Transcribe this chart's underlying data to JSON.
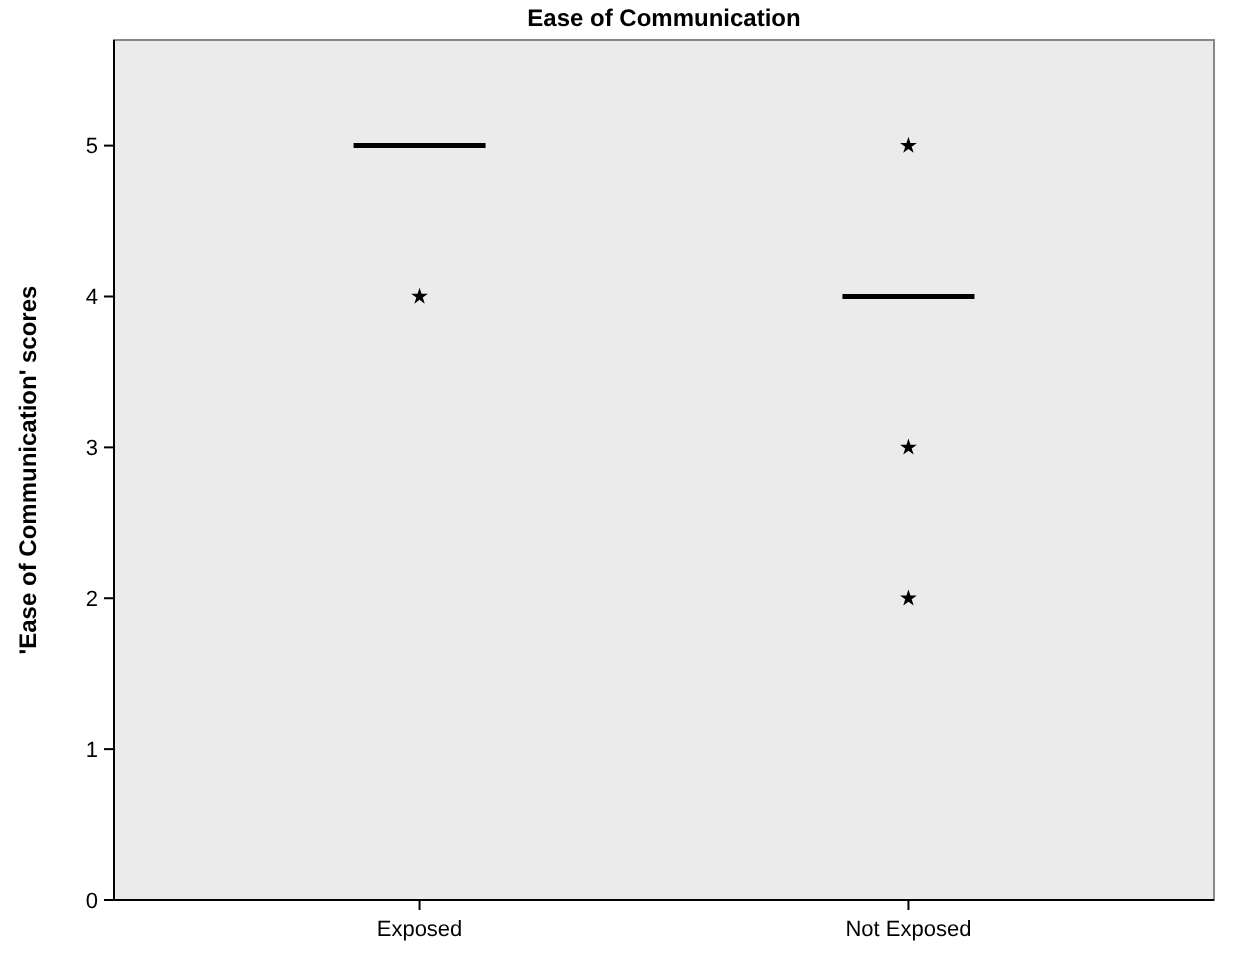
{
  "chart_data": {
    "type": "box",
    "title": "Ease of Communication",
    "ylabel": "'Ease of Communication' scores",
    "categories": [
      "Exposed",
      "Not Exposed"
    ],
    "boxes": [
      {
        "low": 5,
        "q1": 5,
        "median": 5,
        "q3": 5,
        "high": 5,
        "outliers": [
          4
        ]
      },
      {
        "low": 4,
        "q1": 4,
        "median": 4,
        "q3": 4,
        "high": 4,
        "outliers": [
          5,
          3,
          2
        ]
      }
    ],
    "ylim": [
      0,
      5.7
    ],
    "yticks": [
      0,
      1,
      2,
      3,
      4,
      5
    ],
    "marker": "star",
    "grid": false
  }
}
